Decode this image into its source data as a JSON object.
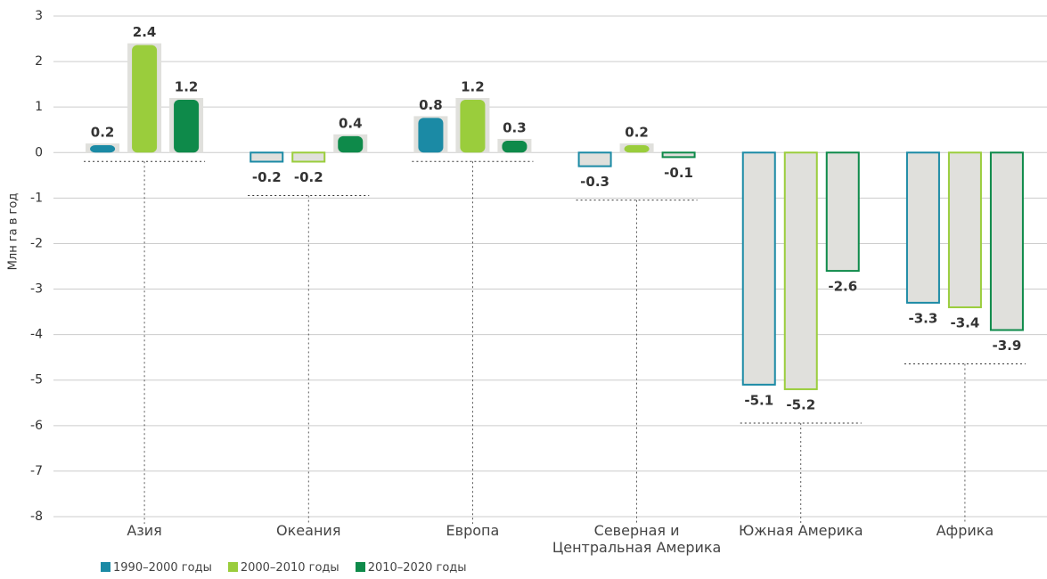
{
  "chart_data": {
    "type": "bar",
    "y_label": "Млн га в год",
    "categories": [
      "Азия",
      "Океания",
      "Европа",
      "Северная и Центральная Америка",
      "Южная Америка",
      "Африка"
    ],
    "series": [
      {
        "name": "1990–2000 годы",
        "color": "#1b8aa5",
        "values": [
          0.2,
          -0.2,
          0.8,
          -0.3,
          -5.1,
          -3.3
        ]
      },
      {
        "name": "2000–2010 годы",
        "color": "#9acd3c",
        "values": [
          2.4,
          -0.2,
          1.2,
          0.2,
          -5.2,
          -3.4
        ]
      },
      {
        "name": "2010–2020 годы",
        "color": "#0e8a4a",
        "values": [
          1.2,
          0.4,
          0.3,
          -0.1,
          -2.6,
          -3.9
        ]
      }
    ],
    "ylim": [
      -8,
      3
    ],
    "yticks": [
      -8,
      -7,
      -6,
      -5,
      -4,
      -3,
      -2,
      -1,
      0,
      1,
      2,
      3
    ],
    "grid": true
  }
}
